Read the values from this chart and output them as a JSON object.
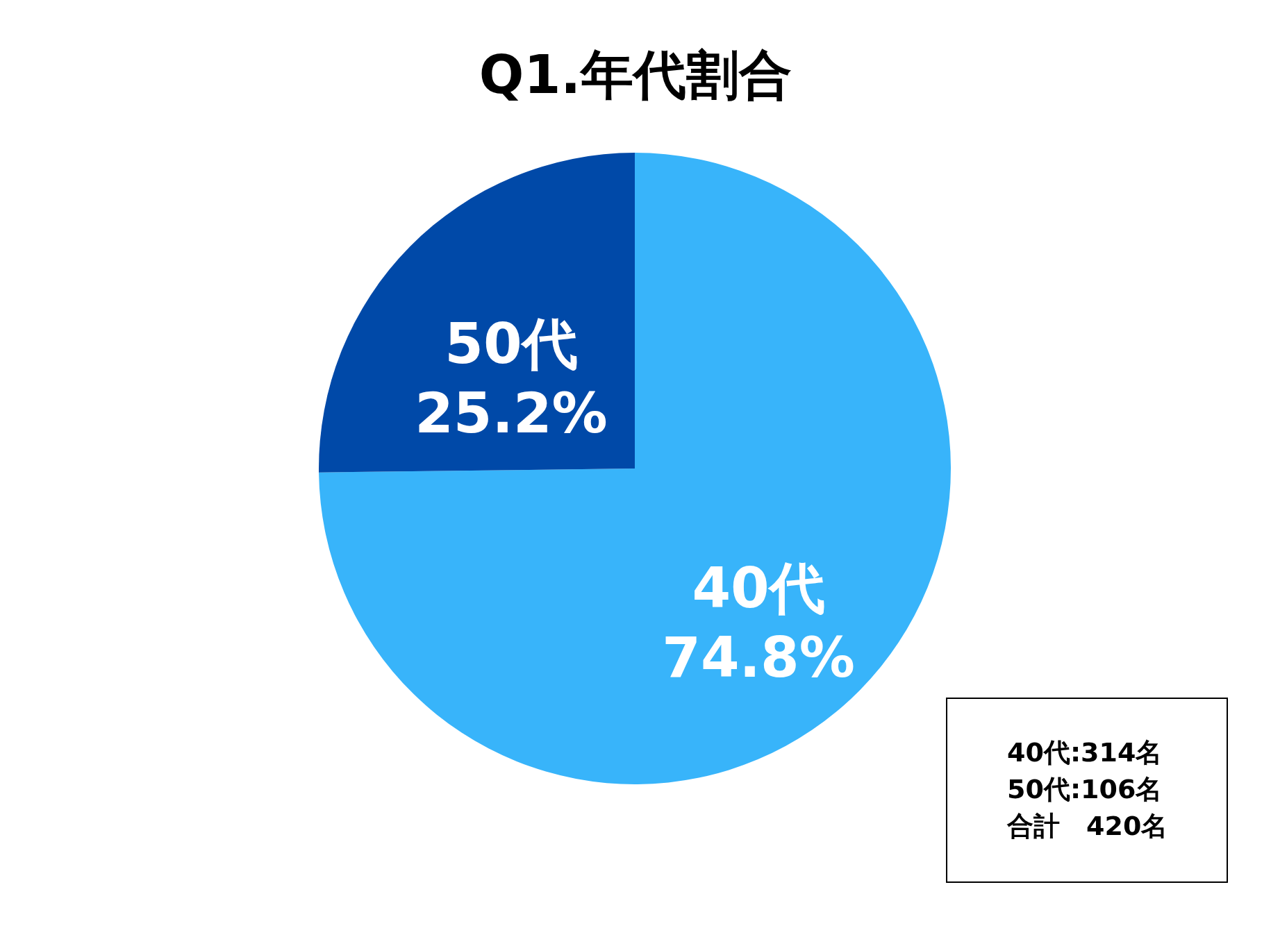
{
  "chart_data": {
    "type": "pie",
    "title": "Q1.年代割合",
    "categories": [
      "40代",
      "50代"
    ],
    "values": [
      74.8,
      25.2
    ],
    "colors": [
      "#38b4fa",
      "#0049a8"
    ],
    "value_labels": [
      "74.8%",
      "25.2%"
    ],
    "legend": false,
    "annotations": [
      "40代:314名",
      "50代:106名",
      "合計　420名"
    ]
  }
}
